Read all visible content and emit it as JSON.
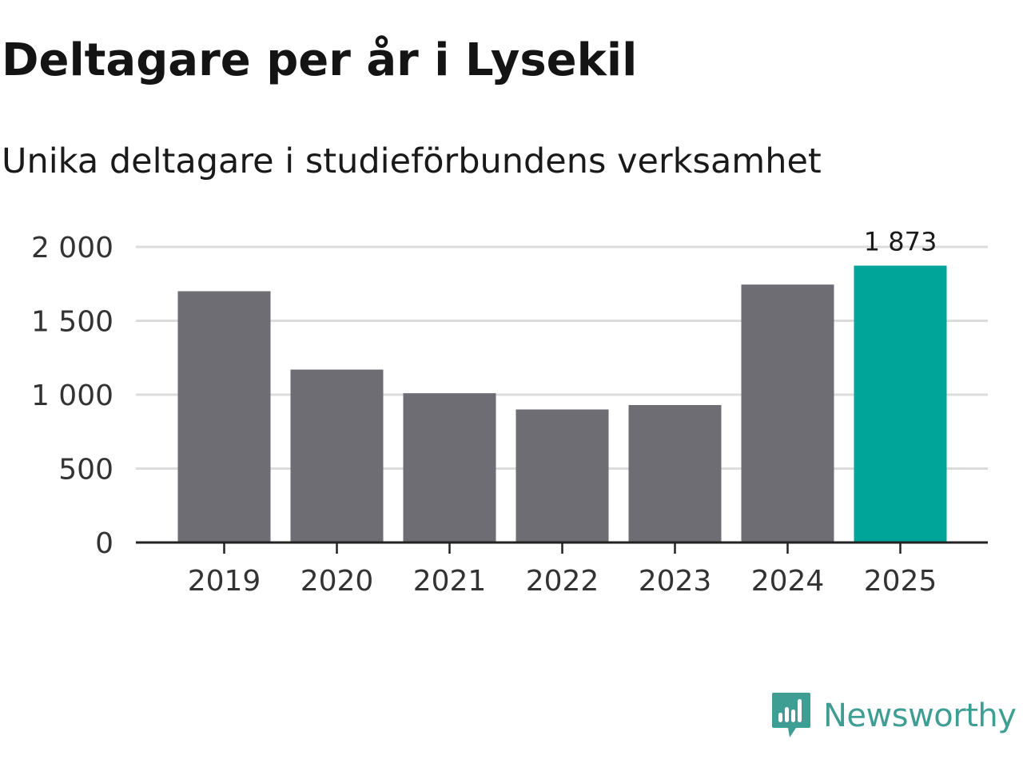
{
  "header": {
    "title": "Deltagare per år i Lysekil",
    "subtitle": "Unika deltagare i studieförbundens verksamhet"
  },
  "brand": {
    "name": "Newsworthy",
    "color": "#3f9e94",
    "icon": "newsworthy-logo-icon"
  },
  "colors": {
    "bar": "#6e6d73",
    "highlight": "#00a59a",
    "grid": "#dcdcdc",
    "axis": "#222222",
    "tick_text": "#333333"
  },
  "chart_data": {
    "type": "bar",
    "categories": [
      "2019",
      "2020",
      "2021",
      "2022",
      "2023",
      "2024",
      "2025"
    ],
    "values": [
      1700,
      1170,
      1010,
      900,
      930,
      1745,
      1873
    ],
    "highlight_index": 6,
    "value_labels": [
      "",
      "",
      "",
      "",
      "",
      "",
      "1 873"
    ],
    "y_ticks": [
      0,
      500,
      1000,
      1500,
      2000
    ],
    "y_tick_labels": [
      "0",
      "500",
      "1 000",
      "1 500",
      "2 000"
    ],
    "ylim": [
      0,
      2000
    ],
    "grid": true,
    "legend": false,
    "xlabel": "",
    "ylabel": ""
  }
}
